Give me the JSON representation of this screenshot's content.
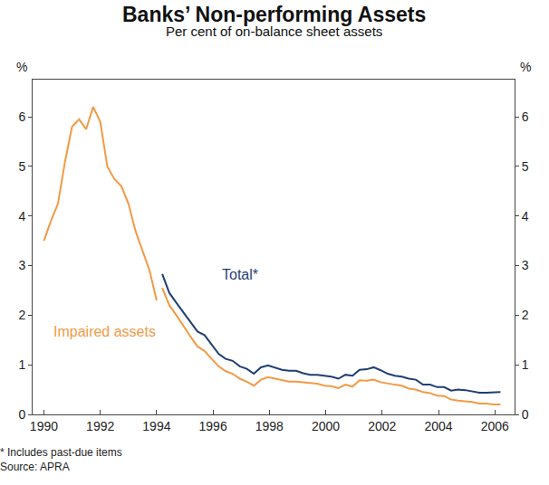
{
  "chart_data": {
    "type": "line",
    "title": "Banks’ Non-performing Assets",
    "subtitle": "Per cent of on-balance sheet assets",
    "ylabel": "%",
    "notes": [
      "* Includes past-due items",
      "Source: APRA"
    ],
    "x": [
      1990.0,
      1990.25,
      1990.5,
      1990.75,
      1991.0,
      1991.25,
      1991.5,
      1991.75,
      1992.0,
      1992.25,
      1992.5,
      1992.75,
      1993.0,
      1993.25,
      1993.5,
      1993.75,
      1994.0,
      1994.1,
      1994.2,
      1994.45,
      1994.7,
      1994.95,
      1995.2,
      1995.45,
      1995.7,
      1995.95,
      1996.2,
      1996.45,
      1996.7,
      1996.95,
      1997.2,
      1997.45,
      1997.7,
      1997.95,
      1998.2,
      1998.45,
      1998.7,
      1998.95,
      1999.2,
      1999.45,
      1999.7,
      1999.95,
      2000.2,
      2000.45,
      2000.7,
      2000.95,
      2001.2,
      2001.45,
      2001.7,
      2001.95,
      2002.2,
      2002.45,
      2002.7,
      2002.95,
      2003.2,
      2003.45,
      2003.7,
      2003.95,
      2004.2,
      2004.45,
      2004.7,
      2004.95,
      2005.2,
      2005.45,
      2005.7,
      2005.95,
      2006.2
    ],
    "series": [
      {
        "name": "Total*",
        "color": "#1f3f73",
        "values": [
          null,
          null,
          null,
          null,
          null,
          null,
          null,
          null,
          null,
          null,
          null,
          null,
          null,
          null,
          null,
          null,
          null,
          null,
          2.83,
          2.45,
          2.25,
          2.05,
          1.85,
          1.67,
          1.6,
          1.4,
          1.22,
          1.12,
          1.08,
          0.97,
          0.92,
          0.82,
          0.95,
          0.99,
          0.95,
          0.9,
          0.88,
          0.88,
          0.83,
          0.8,
          0.8,
          0.78,
          0.76,
          0.72,
          0.8,
          0.78,
          0.9,
          0.91,
          0.95,
          0.89,
          0.82,
          0.78,
          0.76,
          0.72,
          0.7,
          0.6,
          0.6,
          0.55,
          0.55,
          0.48,
          0.5,
          0.49,
          0.46,
          0.44,
          0.44,
          0.45,
          0.45
        ]
      },
      {
        "name": "Impaired assets",
        "color": "#f29a45",
        "values": [
          3.5,
          3.9,
          4.25,
          5.1,
          5.8,
          5.95,
          5.75,
          6.2,
          5.9,
          5.0,
          4.75,
          4.6,
          4.25,
          3.7,
          3.3,
          2.9,
          2.3,
          null,
          2.55,
          2.2,
          2.0,
          1.78,
          1.57,
          1.37,
          1.28,
          1.12,
          0.97,
          0.87,
          0.82,
          0.72,
          0.66,
          0.58,
          0.7,
          0.75,
          0.72,
          0.69,
          0.66,
          0.66,
          0.65,
          0.63,
          0.62,
          0.58,
          0.57,
          0.53,
          0.6,
          0.56,
          0.69,
          0.68,
          0.7,
          0.65,
          0.62,
          0.6,
          0.58,
          0.52,
          0.5,
          0.45,
          0.43,
          0.38,
          0.37,
          0.3,
          0.28,
          0.27,
          0.25,
          0.22,
          0.22,
          0.2,
          0.2
        ]
      }
    ],
    "xlim": [
      1989.6,
      2006.7
    ],
    "xticks": [
      1990,
      1992,
      1994,
      1996,
      1998,
      2000,
      2002,
      2004,
      2006
    ],
    "ylim": [
      0,
      6.75
    ],
    "yticks": [
      0,
      1,
      2,
      3,
      4,
      5,
      6
    ],
    "grid": false
  }
}
